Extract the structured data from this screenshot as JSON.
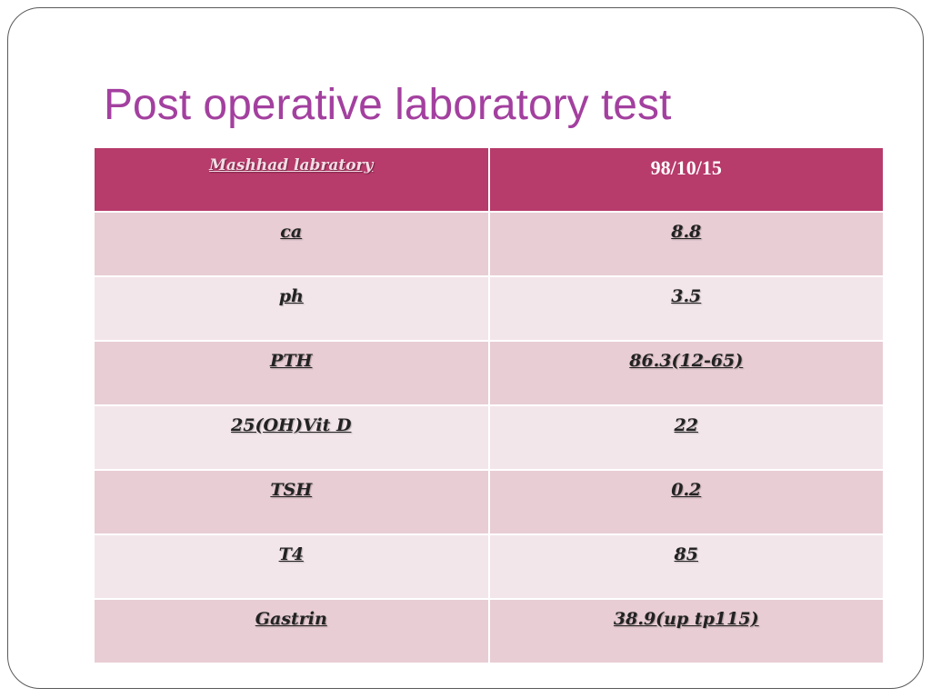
{
  "slide": {
    "title": "Post operative laboratory test"
  },
  "table": {
    "header": {
      "label": "Mashhad labratory",
      "date": "98/10/15"
    },
    "rows": [
      {
        "test": "ca",
        "value": "8.8"
      },
      {
        "test": "ph",
        "value": "3.5"
      },
      {
        "test": "PTH",
        "value": "86.3(12-65)"
      },
      {
        "test": "25(OH)Vit D",
        "value": "22"
      },
      {
        "test": "TSH",
        "value": "0.2"
      },
      {
        "test": "T4",
        "value": "85"
      },
      {
        "test": "Gastrin",
        "value": "38.9(up tp115)"
      }
    ]
  },
  "colors": {
    "title": "#a3409f",
    "header_bg": "#b73b6b",
    "row_odd_bg": "#e8cdd4",
    "row_even_bg": "#f3e6ea"
  }
}
